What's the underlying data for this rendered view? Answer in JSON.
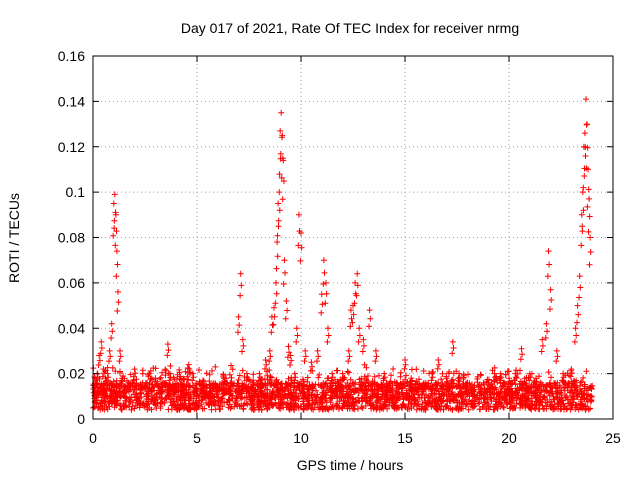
{
  "chart_data": {
    "type": "scatter",
    "title": "Day 017 of 2021, Rate Of TEC Index for receiver nrmg",
    "xlabel": "GPS time / hours",
    "ylabel": "ROTI / TECUs",
    "xlim": [
      0,
      25
    ],
    "ylim": [
      0,
      0.16
    ],
    "xticks": [
      0,
      5,
      10,
      15,
      20,
      25
    ],
    "yticks": [
      0,
      0.02,
      0.04,
      0.06,
      0.08,
      0.1,
      0.12,
      0.14,
      0.16
    ],
    "xtick_labels": [
      "0",
      "5",
      "10",
      "15",
      "20",
      "25"
    ],
    "ytick_labels": [
      "0",
      "0.02",
      "0.04",
      "0.06",
      "0.08",
      "0.1",
      "0.12",
      "0.14",
      "0.16"
    ],
    "grid": true,
    "marker": "+",
    "color": "#ff0000",
    "series": [
      {
        "name": "ROTI",
        "x": [
          0.1,
          0.2,
          0.3,
          0.4,
          0.5,
          0.6,
          0.7,
          0.8,
          0.9,
          1.0,
          1.05,
          1.1,
          1.15,
          1.2,
          1.3,
          1.4,
          1.5,
          1.7,
          2.0,
          2.3,
          2.6,
          3.0,
          3.3,
          3.6,
          3.7,
          4.0,
          4.3,
          4.6,
          4.8,
          5.0,
          5.3,
          5.6,
          6.0,
          6.3,
          6.6,
          7.0,
          7.1,
          7.2,
          7.4,
          7.7,
          8.0,
          8.3,
          8.5,
          8.6,
          8.7,
          8.8,
          8.85,
          8.9,
          8.95,
          9.0,
          9.05,
          9.1,
          9.15,
          9.2,
          9.3,
          9.4,
          9.5,
          9.7,
          9.8,
          9.9,
          10.0,
          10.2,
          10.5,
          10.8,
          11.0,
          11.1,
          11.2,
          11.3,
          11.5,
          11.8,
          12.0,
          12.3,
          12.4,
          12.5,
          12.6,
          12.7,
          12.8,
          13.0,
          13.3,
          13.6,
          14.0,
          14.3,
          14.6,
          15.0,
          15.3,
          15.6,
          16.0,
          16.3,
          16.6,
          17.0,
          17.3,
          17.6,
          18.0,
          18.3,
          18.6,
          19.0,
          19.3,
          19.6,
          20.0,
          20.3,
          20.6,
          21.0,
          21.3,
          21.6,
          21.8,
          21.9,
          22.0,
          22.3,
          22.6,
          23.0,
          23.2,
          23.3,
          23.4,
          23.5,
          23.55,
          23.6,
          23.65,
          23.7,
          23.75,
          23.8,
          23.85,
          23.9
        ],
        "y": [
          0.012,
          0.02,
          0.028,
          0.034,
          0.022,
          0.018,
          0.02,
          0.03,
          0.042,
          0.095,
          0.099,
          0.09,
          0.074,
          0.056,
          0.03,
          0.018,
          0.014,
          0.016,
          0.022,
          0.015,
          0.012,
          0.018,
          0.014,
          0.033,
          0.02,
          0.014,
          0.012,
          0.024,
          0.02,
          0.012,
          0.01,
          0.012,
          0.014,
          0.018,
          0.016,
          0.045,
          0.064,
          0.035,
          0.02,
          0.016,
          0.02,
          0.026,
          0.03,
          0.045,
          0.049,
          0.06,
          0.078,
          0.095,
          0.1,
          0.127,
          0.135,
          0.125,
          0.114,
          0.07,
          0.052,
          0.032,
          0.028,
          0.02,
          0.04,
          0.09,
          0.082,
          0.03,
          0.025,
          0.03,
          0.055,
          0.07,
          0.06,
          0.04,
          0.02,
          0.016,
          0.02,
          0.03,
          0.048,
          0.05,
          0.06,
          0.064,
          0.04,
          0.035,
          0.048,
          0.03,
          0.02,
          0.014,
          0.016,
          0.026,
          0.018,
          0.014,
          0.016,
          0.02,
          0.026,
          0.018,
          0.034,
          0.02,
          0.016,
          0.012,
          0.014,
          0.016,
          0.02,
          0.02,
          0.018,
          0.02,
          0.031,
          0.02,
          0.018,
          0.035,
          0.042,
          0.074,
          0.057,
          0.03,
          0.02,
          0.022,
          0.04,
          0.05,
          0.063,
          0.09,
          0.1,
          0.12,
          0.126,
          0.141,
          0.13,
          0.11,
          0.097,
          0.08
        ]
      }
    ],
    "notes": "Dense noise floor of ~0.005-0.02 TECU spanning 0-24 h is drawn procedurally in addition to the listed points."
  }
}
